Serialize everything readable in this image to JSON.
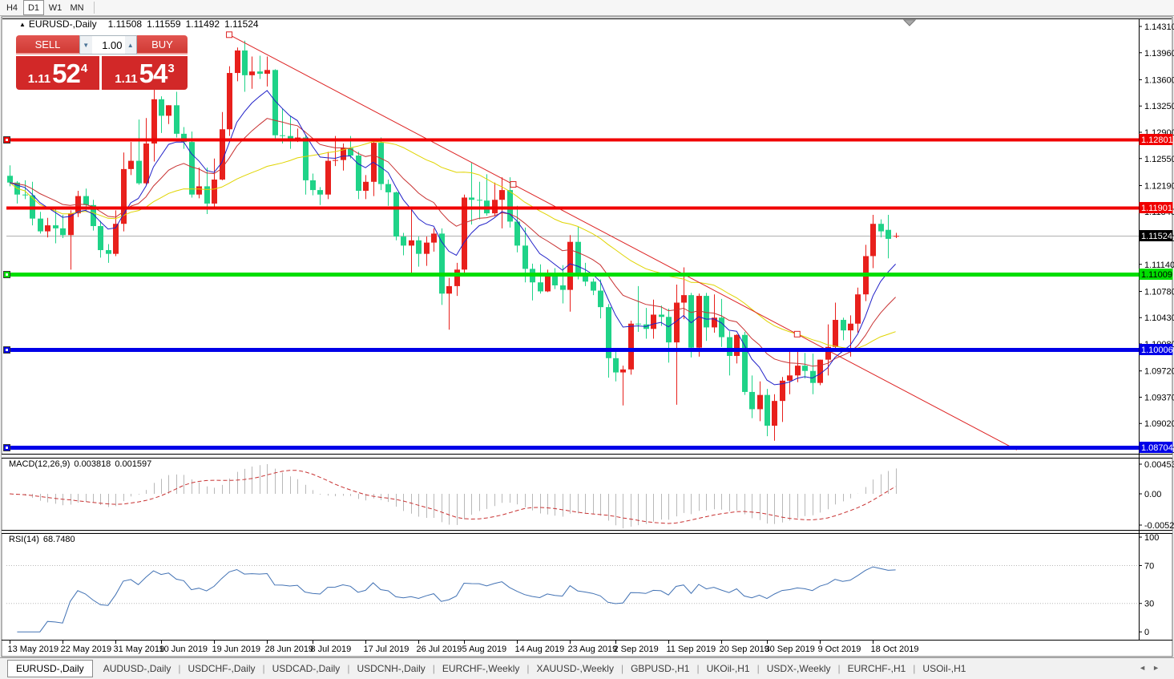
{
  "toolbar": {
    "timeframes": [
      {
        "label": "H4",
        "active": false
      },
      {
        "label": "D1",
        "active": true
      },
      {
        "label": "W1",
        "active": false
      },
      {
        "label": "MN",
        "active": false
      }
    ]
  },
  "chart_header": {
    "collapse_icon": "▲",
    "symbol": "EURUSD-,Daily",
    "open": "1.11508",
    "high": "1.11559",
    "low": "1.11492",
    "close": "1.11524"
  },
  "one_click": {
    "sell_label": "SELL",
    "buy_label": "BUY",
    "volume": "1.00",
    "spin_down_icon": "▼",
    "spin_up_icon": "▲",
    "sell_price": {
      "prefix": "1.11",
      "big": "52",
      "sup": "4"
    },
    "buy_price": {
      "prefix": "1.11",
      "big": "54",
      "sup": "3"
    }
  },
  "chart_data": {
    "type": "candlestick",
    "symbol": "EURUSD-",
    "timeframe": "Daily",
    "bull_color": "#e8201c",
    "bear_color": "#1fd388",
    "background": "#ffffff",
    "y_axis": {
      "side": "right",
      "ticks": [
        {
          "p": 1.1431,
          "label": "1.14310"
        },
        {
          "p": 1.1396,
          "label": "1.13960"
        },
        {
          "p": 1.136,
          "label": "1.13600"
        },
        {
          "p": 1.1325,
          "label": "1.13250"
        },
        {
          "p": 1.129,
          "label": "1.12900"
        },
        {
          "p": 1.1255,
          "label": "1.12550"
        },
        {
          "p": 1.1219,
          "label": "1.12190"
        },
        {
          "p": 1.1184,
          "label": "1.11840"
        },
        {
          "p": 1.1149,
          "label": "1.11490"
        },
        {
          "p": 1.1114,
          "label": "1.11140"
        },
        {
          "p": 1.1078,
          "label": "1.10780"
        },
        {
          "p": 1.1043,
          "label": "1.10430"
        },
        {
          "p": 1.1008,
          "label": "1.10080"
        },
        {
          "p": 1.0972,
          "label": "1.09720"
        },
        {
          "p": 1.0937,
          "label": "1.09370"
        },
        {
          "p": 1.0902,
          "label": "1.09020"
        },
        {
          "p": 1.0867,
          "label": "1.08670"
        }
      ]
    },
    "x_axis": {
      "labels": [
        {
          "i": 0,
          "label": "13 May 2019"
        },
        {
          "i": 7,
          "label": "22 May 2019"
        },
        {
          "i": 14,
          "label": "31 May 2019"
        },
        {
          "i": 20,
          "label": "10 Jun 2019"
        },
        {
          "i": 27,
          "label": "19 Jun 2019"
        },
        {
          "i": 34,
          "label": "28 Jun 2019"
        },
        {
          "i": 40,
          "label": "8 Jul 2019"
        },
        {
          "i": 47,
          "label": "17 Jul 2019"
        },
        {
          "i": 54,
          "label": "26 Jul 2019"
        },
        {
          "i": 60,
          "label": "5 Aug 2019"
        },
        {
          "i": 67,
          "label": "14 Aug 2019"
        },
        {
          "i": 74,
          "label": "23 Aug 2019"
        },
        {
          "i": 80,
          "label": "2 Sep 2019"
        },
        {
          "i": 87,
          "label": "11 Sep 2019"
        },
        {
          "i": 94,
          "label": "20 Sep 2019"
        },
        {
          "i": 100,
          "label": "30 Sep 2019"
        },
        {
          "i": 107,
          "label": "9 Oct 2019"
        },
        {
          "i": 114,
          "label": "18 Oct 2019"
        }
      ]
    },
    "candles": [
      [
        1.1232,
        1.1246,
        1.1218,
        1.1223
      ],
      [
        1.1223,
        1.1225,
        1.1195,
        1.1207
      ],
      [
        1.1207,
        1.1226,
        1.1201,
        1.1206
      ],
      [
        1.1206,
        1.1224,
        1.1166,
        1.1175
      ],
      [
        1.1175,
        1.1184,
        1.1155,
        1.1158
      ],
      [
        1.1158,
        1.1176,
        1.115,
        1.1166
      ],
      [
        1.1166,
        1.1188,
        1.1142,
        1.1162
      ],
      [
        1.1162,
        1.118,
        1.1149,
        1.1153
      ],
      [
        1.1153,
        1.1186,
        1.1107,
        1.1182
      ],
      [
        1.1182,
        1.1212,
        1.1177,
        1.1205
      ],
      [
        1.1205,
        1.1215,
        1.1186,
        1.1193
      ],
      [
        1.1193,
        1.12,
        1.1159,
        1.1165
      ],
      [
        1.1165,
        1.1172,
        1.1123,
        1.1133
      ],
      [
        1.1133,
        1.1141,
        1.1116,
        1.1128
      ],
      [
        1.1128,
        1.1186,
        1.1125,
        1.1168
      ],
      [
        1.1168,
        1.1263,
        1.1158,
        1.1241
      ],
      [
        1.1241,
        1.1277,
        1.1233,
        1.1252
      ],
      [
        1.1252,
        1.1307,
        1.122,
        1.1222
      ],
      [
        1.1222,
        1.1309,
        1.122,
        1.1275
      ],
      [
        1.1275,
        1.1348,
        1.1251,
        1.1334
      ],
      [
        1.1334,
        1.1338,
        1.1289,
        1.1312
      ],
      [
        1.1312,
        1.1326,
        1.1301,
        1.1326
      ],
      [
        1.1326,
        1.1344,
        1.1283,
        1.1288
      ],
      [
        1.1288,
        1.1297,
        1.1268,
        1.1277
      ],
      [
        1.1277,
        1.1291,
        1.1203,
        1.1207
      ],
      [
        1.1207,
        1.1243,
        1.1202,
        1.1218
      ],
      [
        1.1218,
        1.1243,
        1.1181,
        1.1195
      ],
      [
        1.1195,
        1.1255,
        1.1187,
        1.1227
      ],
      [
        1.1227,
        1.1317,
        1.1226,
        1.1294
      ],
      [
        1.1294,
        1.1378,
        1.1285,
        1.1369
      ],
      [
        1.1369,
        1.1403,
        1.1358,
        1.1399
      ],
      [
        1.1399,
        1.1412,
        1.1344,
        1.1366
      ],
      [
        1.1366,
        1.1391,
        1.1348,
        1.1371
      ],
      [
        1.1371,
        1.1392,
        1.1361,
        1.1368
      ],
      [
        1.1368,
        1.1391,
        1.1351,
        1.1373
      ],
      [
        1.1373,
        1.1374,
        1.1281,
        1.1286
      ],
      [
        1.1286,
        1.1322,
        1.1275,
        1.1285
      ],
      [
        1.1285,
        1.1312,
        1.1268,
        1.1278
      ],
      [
        1.1278,
        1.1295,
        1.1277,
        1.1283
      ],
      [
        1.1283,
        1.1286,
        1.1207,
        1.1226
      ],
      [
        1.1226,
        1.1235,
        1.1206,
        1.1213
      ],
      [
        1.1213,
        1.1217,
        1.1193,
        1.1207
      ],
      [
        1.1207,
        1.1264,
        1.1201,
        1.1252
      ],
      [
        1.1252,
        1.1285,
        1.1245,
        1.1253
      ],
      [
        1.1253,
        1.1275,
        1.1239,
        1.1269
      ],
      [
        1.1269,
        1.1285,
        1.1255,
        1.1259
      ],
      [
        1.1259,
        1.1264,
        1.1201,
        1.1212
      ],
      [
        1.1212,
        1.1233,
        1.1201,
        1.1224
      ],
      [
        1.1224,
        1.1282,
        1.1205,
        1.1276
      ],
      [
        1.1276,
        1.1283,
        1.1213,
        1.1221
      ],
      [
        1.1221,
        1.1227,
        1.1192,
        1.121
      ],
      [
        1.121,
        1.1211,
        1.1146,
        1.1151
      ],
      [
        1.1151,
        1.1156,
        1.1126,
        1.1139
      ],
      [
        1.1139,
        1.1188,
        1.1101,
        1.1146
      ],
      [
        1.1146,
        1.1151,
        1.1111,
        1.1128
      ],
      [
        1.1128,
        1.1151,
        1.1112,
        1.1143
      ],
      [
        1.1143,
        1.1162,
        1.1131,
        1.1155
      ],
      [
        1.1155,
        1.1162,
        1.106,
        1.1075
      ],
      [
        1.1075,
        1.1096,
        1.1027,
        1.1085
      ],
      [
        1.1085,
        1.1116,
        1.1072,
        1.1107
      ],
      [
        1.1107,
        1.1207,
        1.1101,
        1.1203
      ],
      [
        1.1203,
        1.1249,
        1.1167,
        1.12
      ],
      [
        1.12,
        1.1224,
        1.1174,
        1.1199
      ],
      [
        1.1199,
        1.1234,
        1.1179,
        1.1182
      ],
      [
        1.1182,
        1.1223,
        1.1178,
        1.12
      ],
      [
        1.12,
        1.123,
        1.1162,
        1.1213
      ],
      [
        1.1213,
        1.123,
        1.1163,
        1.1171
      ],
      [
        1.1171,
        1.1192,
        1.113,
        1.1139
      ],
      [
        1.1139,
        1.1163,
        1.109,
        1.1108
      ],
      [
        1.1108,
        1.1115,
        1.1066,
        1.109
      ],
      [
        1.109,
        1.1114,
        1.1075,
        1.1078
      ],
      [
        1.1078,
        1.1107,
        1.1077,
        1.1099
      ],
      [
        1.1099,
        1.1109,
        1.1081,
        1.1086
      ],
      [
        1.1086,
        1.1113,
        1.1062,
        1.108
      ],
      [
        1.108,
        1.1153,
        1.1051,
        1.1144
      ],
      [
        1.1144,
        1.1164,
        1.1094,
        1.1101
      ],
      [
        1.1101,
        1.1116,
        1.1085,
        1.1091
      ],
      [
        1.1091,
        1.1095,
        1.1073,
        1.1079
      ],
      [
        1.1079,
        1.1094,
        1.1042,
        1.1057
      ],
      [
        1.1057,
        1.1061,
        1.0963,
        1.0989
      ],
      [
        1.0989,
        1.0998,
        1.0958,
        1.097
      ],
      [
        1.097,
        1.0979,
        1.0926,
        1.0974
      ],
      [
        1.0974,
        1.1039,
        1.0967,
        1.1035
      ],
      [
        1.1035,
        1.1085,
        1.1024,
        1.1034
      ],
      [
        1.1034,
        1.1056,
        1.1015,
        1.1028
      ],
      [
        1.1028,
        1.1067,
        1.1015,
        1.1047
      ],
      [
        1.1047,
        1.1059,
        1.1032,
        1.1044
      ],
      [
        1.1044,
        1.1055,
        1.0983,
        1.101
      ],
      [
        1.101,
        1.1087,
        1.0927,
        1.1063
      ],
      [
        1.1063,
        1.111,
        1.1041,
        1.1073
      ],
      [
        1.1073,
        1.1076,
        1.099,
        1.1003
      ],
      [
        1.1003,
        1.1075,
        1.0991,
        1.1072
      ],
      [
        1.1072,
        1.1076,
        1.1012,
        1.103
      ],
      [
        1.103,
        1.1074,
        1.1023,
        1.1043
      ],
      [
        1.1043,
        1.1068,
        1.1004,
        1.1017
      ],
      [
        1.1017,
        1.1025,
        1.0966,
        1.0992
      ],
      [
        1.0992,
        1.1021,
        1.0982,
        1.102
      ],
      [
        1.102,
        1.1024,
        1.094,
        1.0944
      ],
      [
        1.0944,
        1.0966,
        1.0909,
        1.0921
      ],
      [
        1.0921,
        1.0958,
        1.0905,
        1.094
      ],
      [
        1.094,
        1.0948,
        1.0885,
        1.0899
      ],
      [
        1.0899,
        1.0941,
        1.0879,
        1.0932
      ],
      [
        1.0932,
        1.0964,
        1.0904,
        1.0959
      ],
      [
        1.0959,
        1.0999,
        1.0941,
        1.0966
      ],
      [
        1.0966,
        1.0999,
        1.0957,
        1.0979
      ],
      [
        1.0979,
        1.0996,
        1.0962,
        1.0972
      ],
      [
        1.0972,
        1.0995,
        1.0941,
        1.0956
      ],
      [
        1.0956,
        1.0987,
        1.0953,
        1.0987
      ],
      [
        1.0987,
        1.1034,
        1.0966,
        1.1004
      ],
      [
        1.1004,
        1.1063,
        1.1002,
        1.104
      ],
      [
        1.104,
        1.1043,
        1.1013,
        1.1026
      ],
      [
        1.1026,
        1.1046,
        1.0991,
        1.1035
      ],
      [
        1.1035,
        1.1083,
        1.1023,
        1.1074
      ],
      [
        1.1074,
        1.114,
        1.1065,
        1.1125
      ],
      [
        1.1125,
        1.118,
        1.1109,
        1.1168
      ],
      [
        1.1168,
        1.1174,
        1.115,
        1.1158
      ],
      [
        1.116,
        1.118,
        1.1122,
        1.1148
      ],
      [
        1.1151,
        1.1156,
        1.1149,
        1.1152
      ]
    ],
    "moving_averages": [
      {
        "type": "sma",
        "period": 34,
        "color": "#e0d400"
      },
      {
        "type": "ema",
        "period": 17,
        "color": "#c83232"
      },
      {
        "type": "ema",
        "period": 8,
        "color": "#2020c8"
      }
    ],
    "hlines": [
      {
        "price": 1.12801,
        "label": "1.12801",
        "color": "#f00000",
        "text": "#ffffff",
        "width": 4,
        "marker": true
      },
      {
        "price": 1.11901,
        "label": "1.11901",
        "color": "#f00000",
        "text": "#ffffff",
        "width": 4,
        "marker": false
      },
      {
        "price": 1.11009,
        "label": "1.11009",
        "color": "#00de00",
        "text": "#000000",
        "width": 5,
        "marker": true
      },
      {
        "price": 1.10006,
        "label": "1.10006",
        "color": "#0000e8",
        "text": "#ffffff",
        "width": 5,
        "marker": true
      },
      {
        "price": 1.08704,
        "label": "1.08704",
        "color": "#0000e8",
        "text": "#ffffff",
        "width": 5,
        "marker": true
      }
    ],
    "trendline": {
      "i1": 29,
      "p1": 1.142,
      "i2": 104,
      "p2": 1.1021,
      "extend_i": 133,
      "color": "#dd2222"
    },
    "current_price": {
      "value": 1.11524,
      "label": "1.11524",
      "line_color": "#b0b0b0",
      "box": "#000000"
    },
    "macd": {
      "name": "MACD(12,26,9)",
      "fast": 12,
      "slow": 26,
      "signal": 9,
      "value_main": "0.003818",
      "value_signal": "0.001597",
      "scale_max": "0.004536",
      "scale_zero": "0.00",
      "scale_min": "-0.005205",
      "bar_color": "#b8b8b8",
      "signal_color": "#c83232"
    },
    "rsi": {
      "name": "RSI(14)",
      "period": 14,
      "value": "68.7480",
      "scale": [
        "100",
        "70",
        "30",
        "0"
      ],
      "level_lines": [
        70,
        30
      ],
      "line_color": "#4272b4"
    }
  },
  "tabs": {
    "items": [
      {
        "label": "EURUSD-,Daily",
        "active": true
      },
      {
        "label": "AUDUSD-,Daily",
        "active": false
      },
      {
        "label": "USDCHF-,Daily",
        "active": false
      },
      {
        "label": "USDCAD-,Daily",
        "active": false
      },
      {
        "label": "USDCNH-,Daily",
        "active": false
      },
      {
        "label": "EURCHF-,Weekly",
        "active": false
      },
      {
        "label": "XAUUSD-,Weekly",
        "active": false
      },
      {
        "label": "GBPUSD-,H1",
        "active": false
      },
      {
        "label": "UKOil-,H1",
        "active": false
      },
      {
        "label": "USDX-,Weekly",
        "active": false
      },
      {
        "label": "EURCHF-,H1",
        "active": false
      },
      {
        "label": "USOil-,H1",
        "active": false
      }
    ],
    "scroll_left": "◄",
    "scroll_right": "►"
  }
}
